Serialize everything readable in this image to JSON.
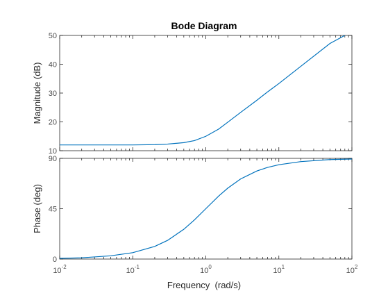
{
  "chart_data": [
    {
      "type": "line",
      "panel": "magnitude",
      "title": "Bode Diagram",
      "ylabel": "Magnitude (dB)",
      "xscale": "log",
      "xlim": [
        0.01,
        100
      ],
      "ylim": [
        10,
        50
      ],
      "yticks": [
        10,
        20,
        30,
        40,
        50
      ],
      "grid": false,
      "series": [
        {
          "x": [
            0.01,
            0.02,
            0.05,
            0.1,
            0.2,
            0.3,
            0.5,
            0.7,
            1,
            1.5,
            2,
            3,
            5,
            7,
            10,
            20,
            50,
            80
          ],
          "values": [
            12.0,
            12.0,
            12.0,
            12.0,
            12.1,
            12.3,
            12.8,
            13.5,
            15.0,
            17.5,
            19.9,
            23.3,
            27.5,
            30.4,
            33.3,
            39.3,
            47.2,
            50.0
          ]
        }
      ],
      "color": "#0072bd"
    },
    {
      "type": "line",
      "panel": "phase",
      "ylabel": "Phase (deg)",
      "xlabel": "Frequency  (rad/s)",
      "xscale": "log",
      "xlim": [
        0.01,
        100
      ],
      "ylim": [
        0,
        90
      ],
      "yticks": [
        0,
        45,
        90
      ],
      "xticks": [
        {
          "base": "10",
          "exp": "-2",
          "value": 0.01
        },
        {
          "base": "10",
          "exp": "-1",
          "value": 0.1
        },
        {
          "base": "10",
          "exp": "0",
          "value": 1
        },
        {
          "base": "10",
          "exp": "1",
          "value": 10
        },
        {
          "base": "10",
          "exp": "2",
          "value": 100
        }
      ],
      "grid": false,
      "series": [
        {
          "x": [
            0.01,
            0.02,
            0.05,
            0.1,
            0.2,
            0.3,
            0.5,
            0.7,
            1,
            1.5,
            2,
            3,
            5,
            7,
            10,
            20,
            50,
            100
          ],
          "values": [
            0.6,
            1.1,
            2.9,
            5.7,
            11.3,
            16.7,
            26.6,
            35.0,
            45.0,
            56.3,
            63.4,
            71.6,
            78.7,
            81.9,
            84.3,
            87.1,
            88.9,
            89.4
          ]
        }
      ],
      "color": "#0072bd"
    }
  ]
}
